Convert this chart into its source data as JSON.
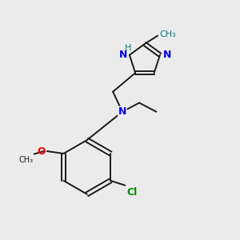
{
  "background_color": "#ebebeb",
  "bond_color": "#1a1a1a",
  "N_color": "#0000ee",
  "O_color": "#ee0000",
  "Cl_color": "#008800",
  "methyl_color": "#008080",
  "H_color": "#008080",
  "lw": 1.4,
  "figsize": [
    3.0,
    3.0
  ],
  "dpi": 100,
  "xlim": [
    0,
    10
  ],
  "ylim": [
    0,
    10
  ]
}
